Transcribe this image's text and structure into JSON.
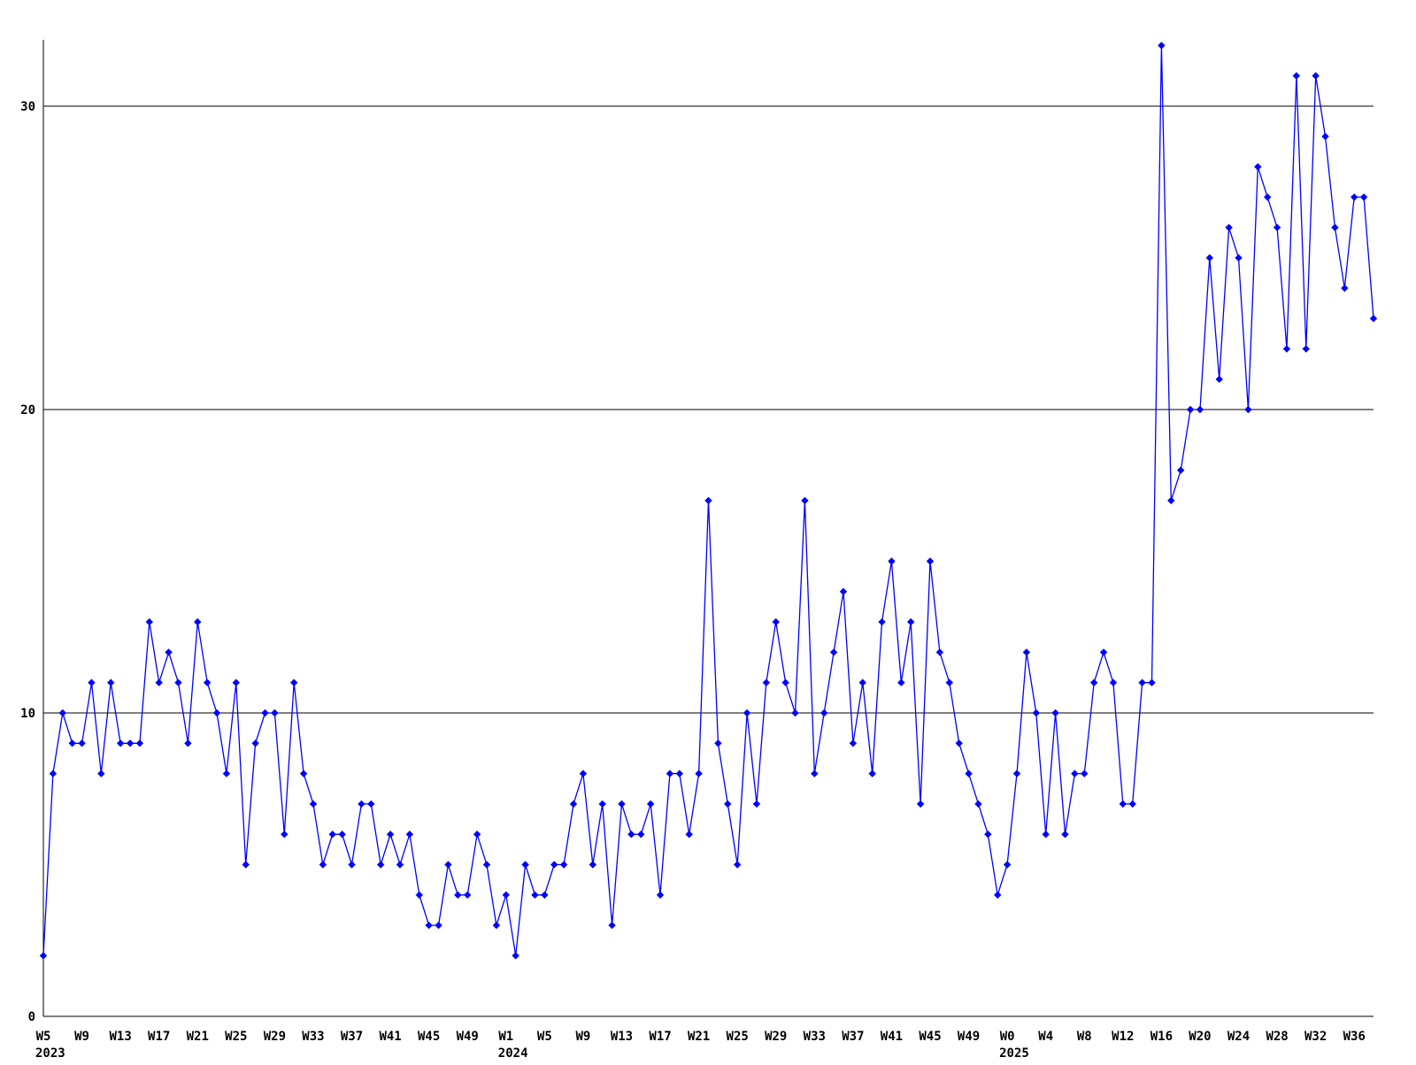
{
  "chart_data": {
    "type": "line",
    "title": "",
    "xlabel": "",
    "ylabel": "",
    "legend": null,
    "grid": "horizontal lines at y=10,20,30 plus bottom axis",
    "legend_position": "none",
    "line_color": "#0000ff",
    "axis_color": "#000000",
    "background_color": "#ffffff",
    "marker": "diamond",
    "y_ticks": [
      0,
      10,
      20,
      30
    ],
    "ylim": [
      0,
      32.2
    ],
    "x_unit": "ISO week",
    "x_tick_every": 4,
    "series": [
      {
        "year": "2023",
        "first_week": 5,
        "week_prefix": "W",
        "values": [
          2,
          8,
          10,
          9,
          9,
          11,
          8,
          11,
          9,
          9,
          9,
          13,
          11,
          12,
          11,
          9,
          13,
          11,
          10,
          8,
          11,
          5,
          9,
          10,
          10,
          6,
          11,
          8,
          7,
          5,
          6,
          6,
          5,
          7,
          7,
          5,
          6,
          5,
          6,
          4,
          3,
          3,
          5,
          4,
          4,
          6,
          5,
          3
        ]
      },
      {
        "year": "2024",
        "first_week": 1,
        "week_prefix": "W",
        "values": [
          4,
          2,
          5,
          4,
          4,
          5,
          5,
          7,
          8,
          5,
          7,
          3,
          7,
          6,
          6,
          7,
          4,
          8,
          8,
          6,
          8,
          17,
          9,
          7,
          5,
          10,
          7,
          11,
          13,
          11,
          10,
          17,
          8,
          10,
          12,
          14,
          9,
          11,
          8,
          13,
          15,
          11,
          13,
          7,
          15,
          12,
          11,
          9,
          8,
          7,
          6,
          4
        ]
      },
      {
        "year": "2025",
        "first_week": 0,
        "week_prefix": "W",
        "values": [
          5,
          8,
          12,
          10,
          6,
          10,
          6,
          8,
          8,
          11,
          12,
          11,
          7,
          7,
          11,
          11,
          32,
          17,
          18,
          20,
          20,
          25,
          21,
          26,
          25,
          20,
          28,
          27,
          26,
          22,
          31,
          22,
          31,
          29,
          26,
          24,
          27,
          27,
          23
        ]
      }
    ],
    "year_labels": [
      {
        "year": "2023",
        "under_tick": "W5"
      },
      {
        "year": "2024",
        "under_tick": "W1"
      },
      {
        "year": "2025",
        "under_tick": "W0"
      }
    ]
  }
}
